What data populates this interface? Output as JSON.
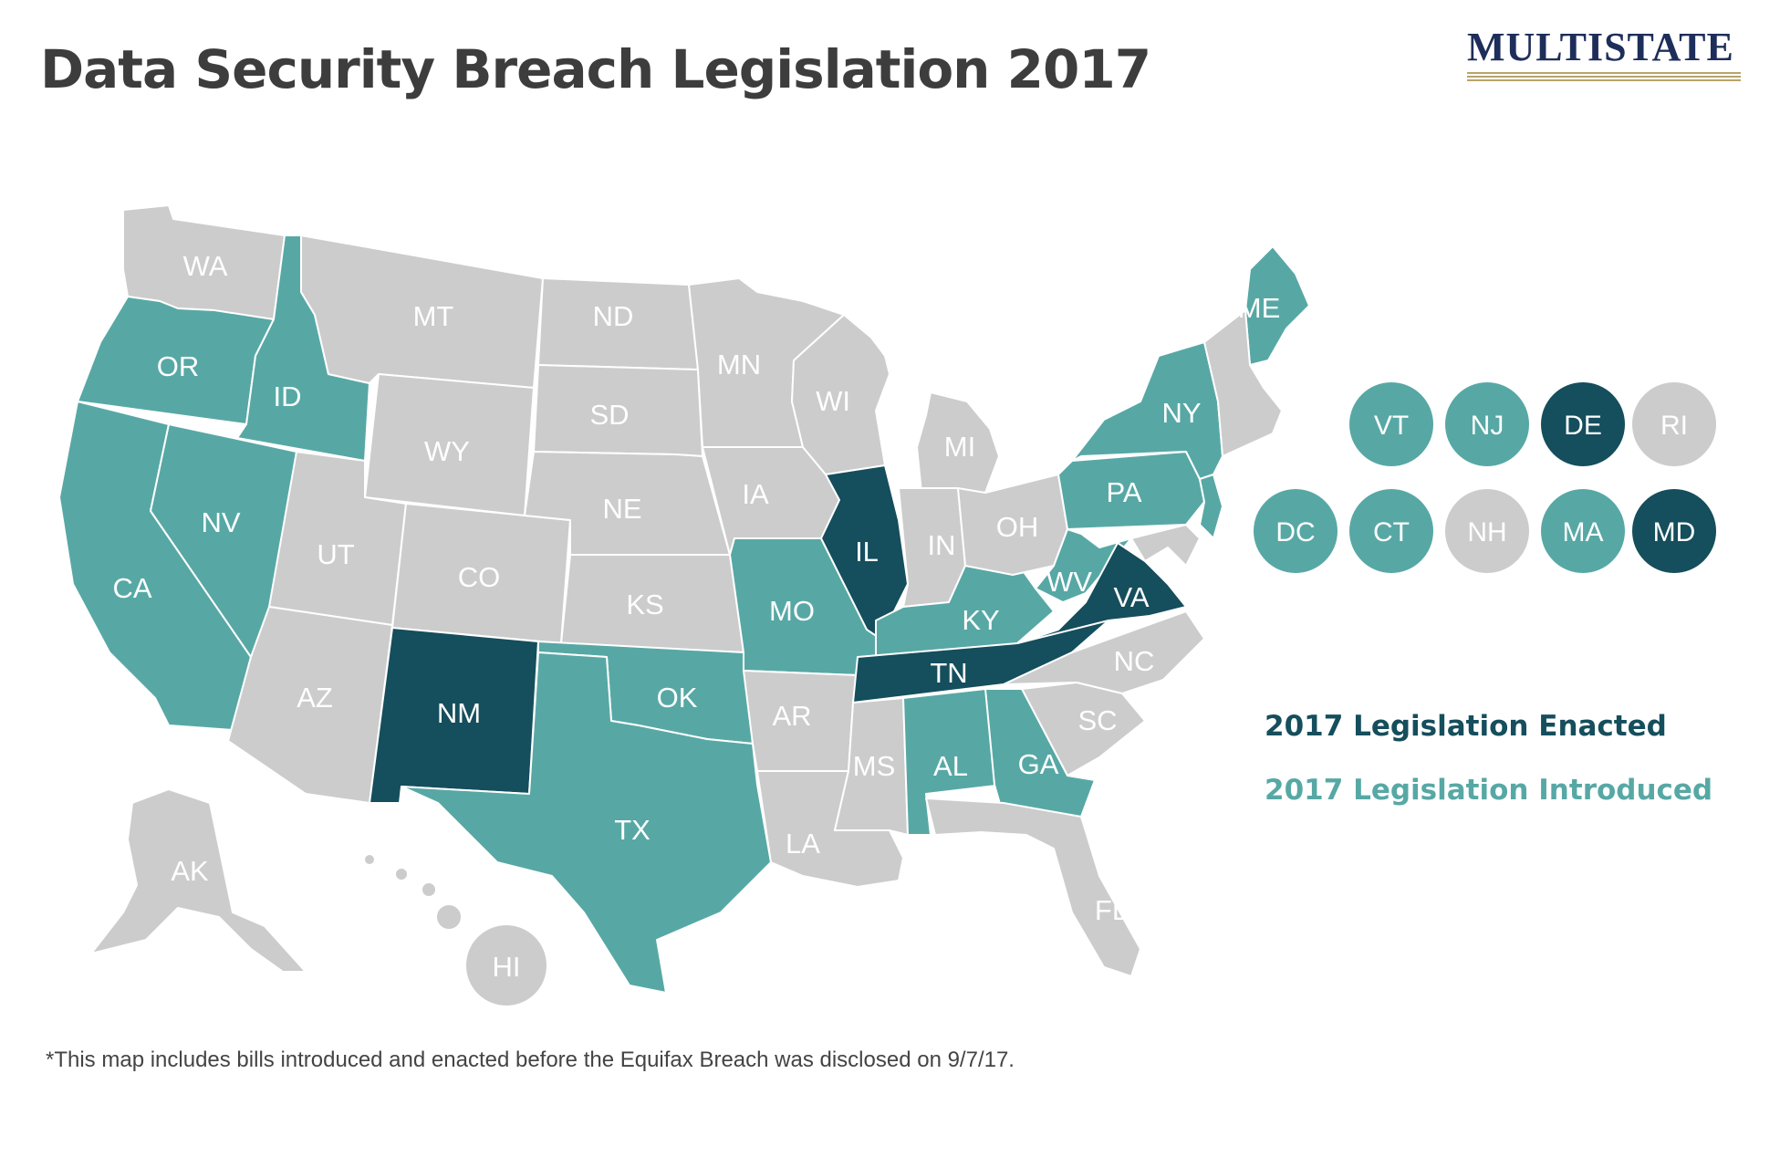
{
  "title": "Data Security Breach Legislation 2017",
  "logo": {
    "text": "MULTISTATE"
  },
  "colors": {
    "enacted": "#154e5c",
    "introduced": "#57a8a5",
    "none": "#cccccc"
  },
  "legend": {
    "enacted": "2017 Legislation Enacted",
    "introduced": "2017 Legislation Introduced"
  },
  "states": {
    "WA": "none",
    "OR": "introduced",
    "CA": "introduced",
    "ID": "introduced",
    "NV": "introduced",
    "MT": "none",
    "WY": "none",
    "UT": "none",
    "AZ": "none",
    "CO": "none",
    "NM": "enacted",
    "ND": "none",
    "SD": "none",
    "NE": "none",
    "KS": "none",
    "OK": "introduced",
    "TX": "introduced",
    "MN": "none",
    "IA": "none",
    "MO": "introduced",
    "AR": "none",
    "LA": "none",
    "WI": "none",
    "IL": "enacted",
    "MS": "none",
    "MI": "none",
    "IN": "none",
    "KY": "introduced",
    "TN": "enacted",
    "AL": "introduced",
    "OH": "none",
    "WV": "introduced",
    "GA": "introduced",
    "FL": "none",
    "SC": "none",
    "NC": "none",
    "VA": "enacted",
    "PA": "introduced",
    "NY": "introduced",
    "ME": "introduced",
    "AK": "none",
    "HI": "none"
  },
  "small_states": [
    {
      "abbr": "VT",
      "status": "introduced"
    },
    {
      "abbr": "NJ",
      "status": "introduced"
    },
    {
      "abbr": "DE",
      "status": "enacted"
    },
    {
      "abbr": "RI",
      "status": "none"
    },
    {
      "abbr": "DC",
      "status": "introduced"
    },
    {
      "abbr": "CT",
      "status": "introduced"
    },
    {
      "abbr": "NH",
      "status": "none"
    },
    {
      "abbr": "MA",
      "status": "introduced"
    },
    {
      "abbr": "MD",
      "status": "enacted"
    }
  ],
  "footnote": "*This map includes bills introduced and enacted before the Equifax Breach was disclosed on 9/7/17."
}
